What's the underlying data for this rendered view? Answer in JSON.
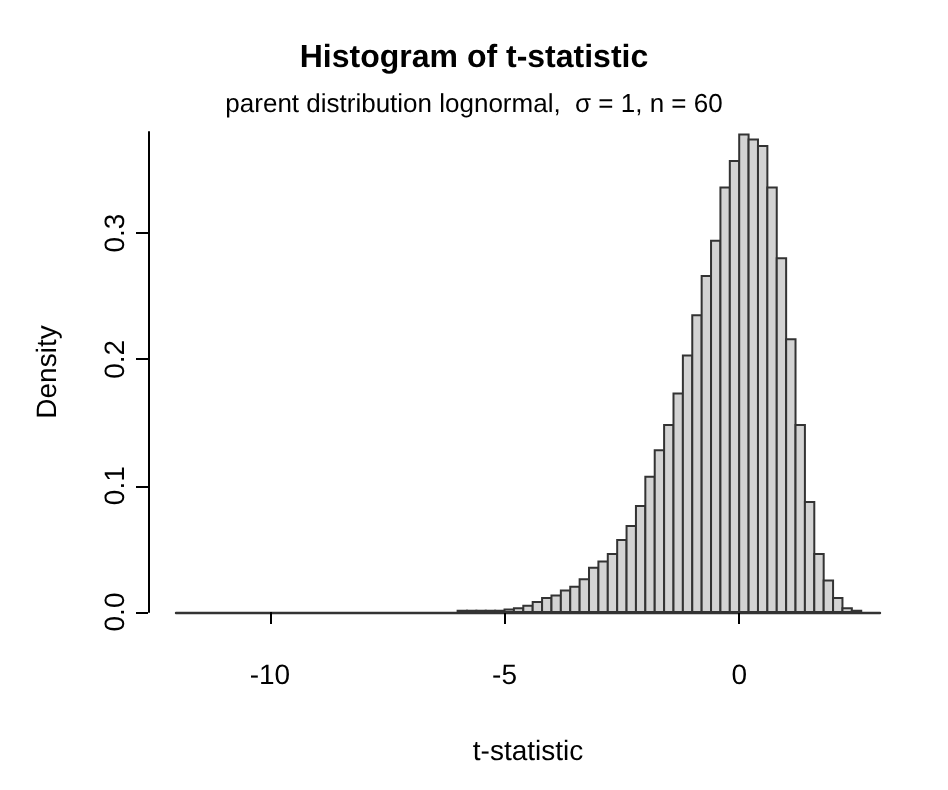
{
  "chart_data": {
    "type": "histogram",
    "title": "Histogram of t-statistic",
    "subtitle": "parent distribution lognormal,  σ = 1, n = 60",
    "xlabel": "t-statistic",
    "ylabel": "Density",
    "bins": [
      -6.0,
      -5.8,
      -5.6,
      -5.4,
      -5.2,
      -5.0,
      -4.8,
      -4.6,
      -4.4,
      -4.2,
      -4.0,
      -3.8,
      -3.6,
      -3.4,
      -3.2,
      -3.0,
      -2.8,
      -2.6,
      -2.4,
      -2.2,
      -2.0,
      -1.8,
      -1.6,
      -1.4,
      -1.2,
      -1.0,
      -0.8,
      -0.6,
      -0.4,
      -0.2,
      0.0,
      0.2,
      0.4,
      0.6,
      0.8,
      1.0,
      1.2,
      1.4,
      1.6,
      1.8,
      2.0,
      2.2,
      2.4,
      2.6
    ],
    "values": [
      0.001,
      0.001,
      0.001,
      0.001,
      0.001,
      0.002,
      0.003,
      0.005,
      0.008,
      0.011,
      0.013,
      0.017,
      0.02,
      0.026,
      0.035,
      0.04,
      0.046,
      0.057,
      0.068,
      0.084,
      0.107,
      0.128,
      0.148,
      0.173,
      0.203,
      0.235,
      0.266,
      0.294,
      0.336,
      0.357,
      0.378,
      0.374,
      0.369,
      0.336,
      0.28,
      0.216,
      0.148,
      0.087,
      0.046,
      0.025,
      0.011,
      0.003,
      0.001
    ],
    "color": "#d3d3d3",
    "xlim": [
      -12,
      3
    ],
    "xticks": [
      -10,
      -5,
      0
    ],
    "ylim": [
      0,
      0.38
    ],
    "yticks": [
      {
        "value": 0,
        "label": "0.0"
      },
      0.1,
      0.2,
      0.3
    ],
    "grid": false
  }
}
